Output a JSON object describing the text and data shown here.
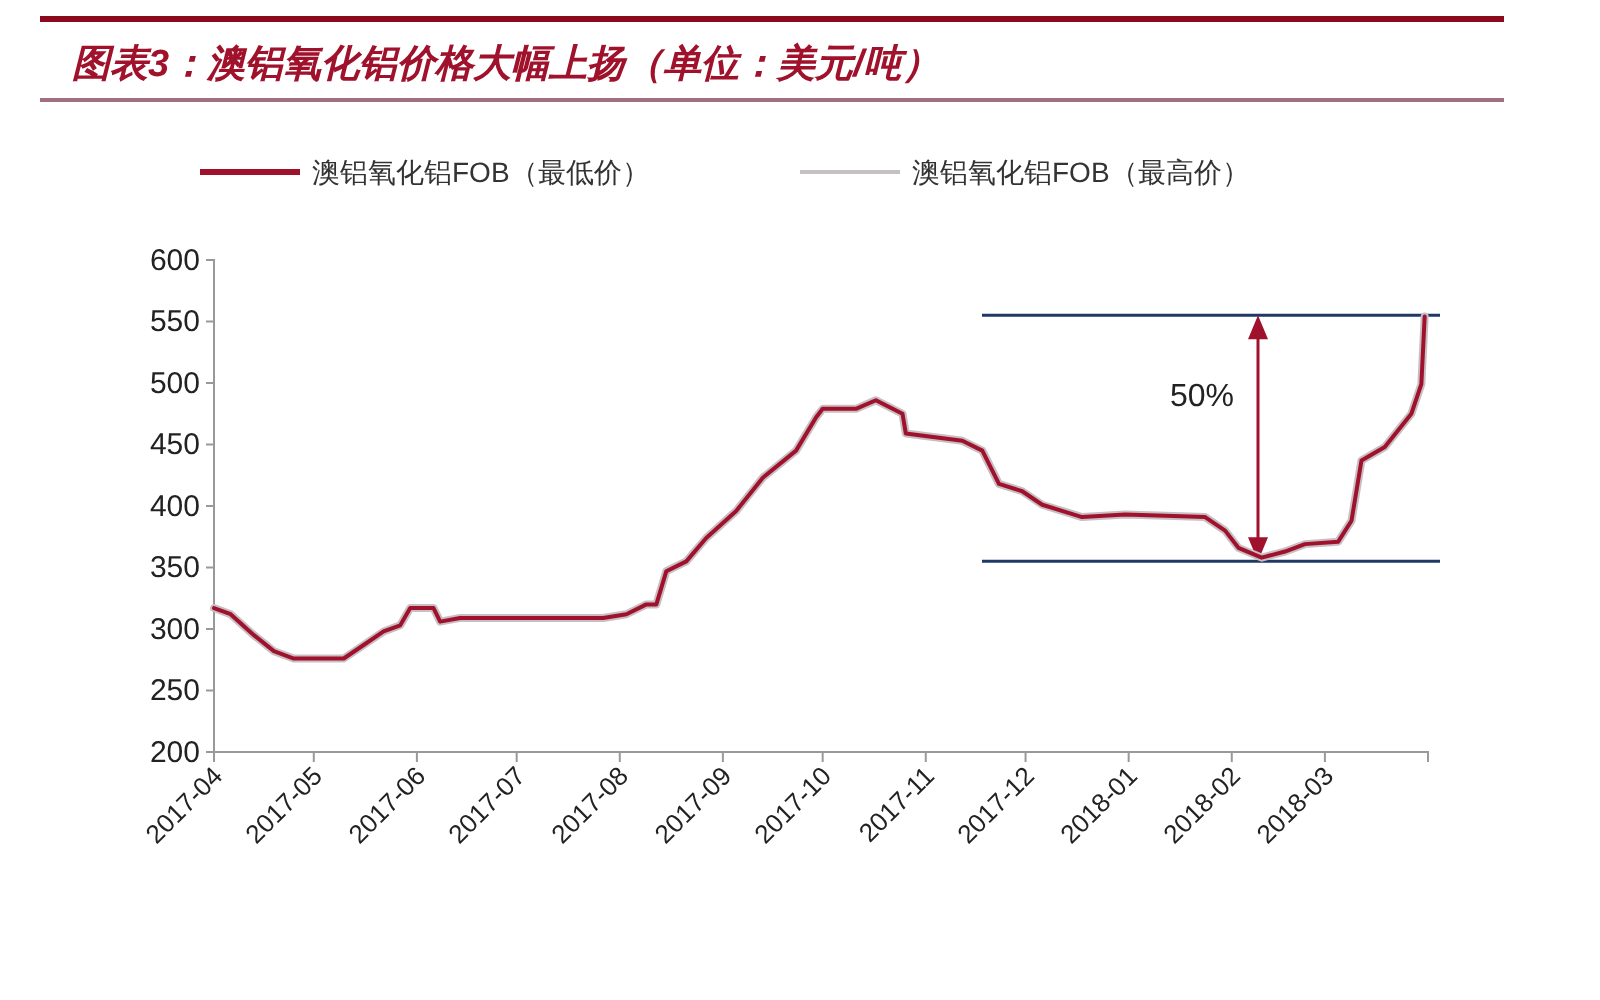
{
  "chart_data": {
    "type": "line",
    "title": "图表3：澳铝氧化铝价格大幅上扬（单位：美元/吨）",
    "x": [
      "2017-04-01",
      "2017-04-06",
      "2017-04-13",
      "2017-04-19",
      "2017-04-25",
      "2017-05-10",
      "2017-05-16",
      "2017-05-22",
      "2017-05-27",
      "2017-05-30",
      "2017-06-06",
      "2017-06-08",
      "2017-06-14",
      "2017-07-27",
      "2017-08-03",
      "2017-08-09",
      "2017-08-12",
      "2017-08-15",
      "2017-08-21",
      "2017-08-27",
      "2017-09-05",
      "2017-09-13",
      "2017-09-23",
      "2017-09-29",
      "2017-10-01",
      "2017-10-11",
      "2017-10-17",
      "2017-10-25",
      "2017-10-26",
      "2017-11-12",
      "2017-11-18",
      "2017-11-23",
      "2017-11-30",
      "2017-12-06",
      "2017-12-18",
      "2017-12-31",
      "2018-01-24",
      "2018-01-30",
      "2018-02-03",
      "2018-02-10",
      "2018-02-17",
      "2018-02-23",
      "2018-03-05",
      "2018-03-09",
      "2018-03-12",
      "2018-03-19",
      "2018-03-27",
      "2018-03-30",
      "2018-03-31"
    ],
    "series": [
      {
        "name": "澳铝氧化铝FOB（最低价）",
        "color": "#a0112b",
        "values": [
          317,
          312,
          295,
          282,
          276,
          276,
          287,
          298,
          303,
          317,
          317,
          306,
          309,
          309,
          312,
          320,
          320,
          347,
          355,
          374,
          396,
          423,
          445,
          472,
          479,
          479,
          486,
          475,
          459,
          453,
          445,
          418,
          412,
          401,
          391,
          393,
          391,
          380,
          366,
          358,
          363,
          369,
          371,
          388,
          437,
          448,
          475,
          499,
          554
        ]
      },
      {
        "name": "澳铝氧化铝FOB（最高价）",
        "color": "#c8bfc4",
        "values": [
          317,
          312,
          295,
          282,
          276,
          276,
          287,
          298,
          303,
          317,
          317,
          306,
          309,
          309,
          312,
          320,
          320,
          347,
          355,
          374,
          396,
          423,
          445,
          472,
          479,
          479,
          486,
          475,
          459,
          453,
          445,
          418,
          412,
          401,
          391,
          393,
          391,
          380,
          366,
          358,
          363,
          369,
          371,
          388,
          437,
          448,
          475,
          499,
          554
        ]
      }
    ],
    "xlim": [
      "2017-04-01",
      "2018-04-01"
    ],
    "xticks": [
      "2017-04",
      "2017-05",
      "2017-06",
      "2017-07",
      "2017-08",
      "2017-09",
      "2017-10",
      "2017-11",
      "2017-12",
      "2018-01",
      "2018-02",
      "2018-03"
    ],
    "ylim": [
      200,
      600
    ],
    "yticks": [
      200,
      250,
      300,
      350,
      400,
      450,
      500,
      550,
      600
    ],
    "ref_lines": [
      {
        "axis": "y",
        "value": 555,
        "color": "#1f3864"
      },
      {
        "axis": "y",
        "value": 355,
        "color": "#1f3864"
      }
    ],
    "annotations": [
      "50%"
    ],
    "grid": false,
    "legend": "top"
  }
}
